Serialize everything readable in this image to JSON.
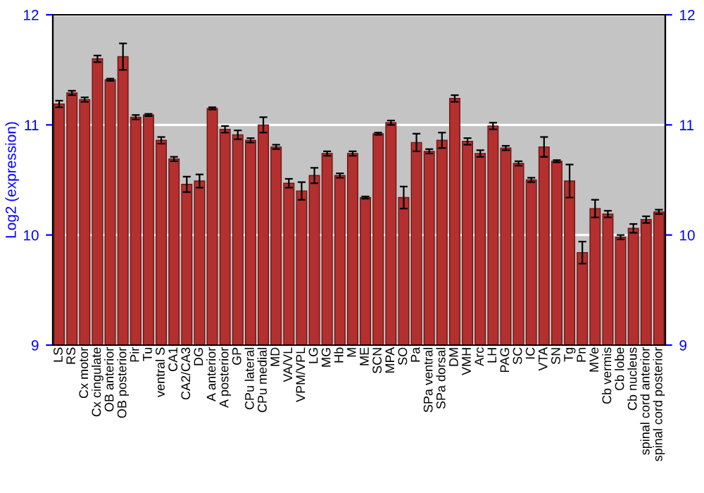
{
  "chart_data": {
    "type": "bar",
    "ylabel": "Log2 (expression)",
    "categories": [
      "LS",
      "RS",
      "Cx motor",
      "Cx cingulate",
      "OB anterior",
      "OB posterior",
      "Pir",
      "Tu",
      "ventral S",
      "CA1",
      "CA2/CA3",
      "DG",
      "A anterior",
      "A posterior",
      "GP",
      "CPu lateral",
      "CPu medial",
      "MD",
      "VA/VL",
      "VPM/VPL",
      "LG",
      "MG",
      "Hb",
      "M",
      "ME",
      "SCN",
      "MPA",
      "SO",
      "Pa",
      "SPa ventral",
      "SPa dorsal",
      "DM",
      "VMH",
      "Arc",
      "LH",
      "PAG",
      "SC",
      "IC",
      "VTA",
      "SN",
      "Tg",
      "Pn",
      "MVe",
      "Cb vermis",
      "Cb lobe",
      "Cb nucleus",
      "spinal cord anterior",
      "spinal cord posterior"
    ],
    "values": [
      11.19,
      11.29,
      11.23,
      11.6,
      11.41,
      11.62,
      11.07,
      11.09,
      10.86,
      10.69,
      10.46,
      10.49,
      11.15,
      10.96,
      10.91,
      10.86,
      11.0,
      10.8,
      10.47,
      10.4,
      10.54,
      10.74,
      10.54,
      10.74,
      10.34,
      10.92,
      11.02,
      10.34,
      10.84,
      10.76,
      10.86,
      11.24,
      10.85,
      10.74,
      10.99,
      10.79,
      10.65,
      10.5,
      10.8,
      10.67,
      10.49,
      9.84,
      10.24,
      10.19,
      9.98,
      10.06,
      10.14,
      10.21
    ],
    "errors": [
      0.03,
      0.02,
      0.02,
      0.03,
      0.01,
      0.12,
      0.02,
      0.01,
      0.03,
      0.02,
      0.07,
      0.06,
      0.01,
      0.03,
      0.04,
      0.02,
      0.07,
      0.02,
      0.04,
      0.08,
      0.07,
      0.02,
      0.02,
      0.02,
      0.01,
      0.01,
      0.02,
      0.1,
      0.08,
      0.02,
      0.07,
      0.03,
      0.03,
      0.03,
      0.03,
      0.02,
      0.02,
      0.02,
      0.09,
      0.01,
      0.15,
      0.1,
      0.08,
      0.03,
      0.02,
      0.04,
      0.03,
      0.02
    ],
    "color": "#b3302f",
    "ylim": [
      9,
      12
    ],
    "yticks": [
      9,
      10,
      11,
      12
    ],
    "y2lim": [
      9,
      12
    ],
    "y2ticks": [
      9,
      10,
      11,
      12
    ],
    "grid": "y"
  }
}
